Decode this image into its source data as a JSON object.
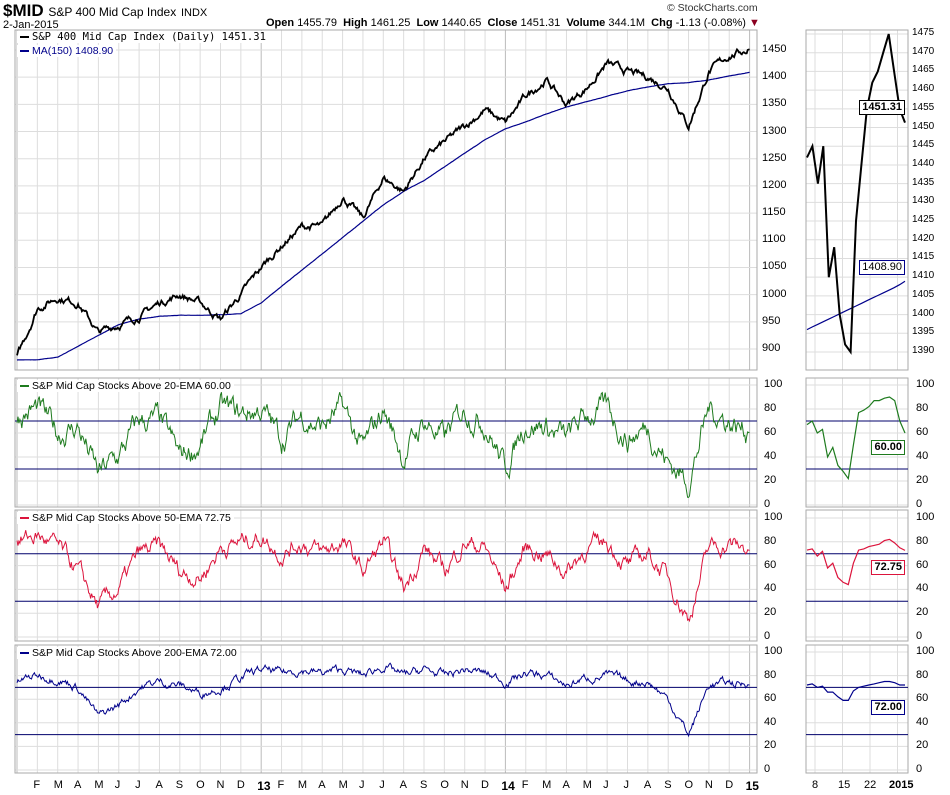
{
  "header": {
    "symbol": "$MID",
    "name": "S&P 400 Mid Cap Index",
    "exchange": "INDX",
    "date": "2-Jan-2015",
    "watermark": "© StockCharts.com",
    "open_label": "Open",
    "open": "1455.79",
    "high_label": "High",
    "high": "1461.25",
    "low_label": "Low",
    "low": "1440.65",
    "close_label": "Close",
    "close": "1451.31",
    "volume_label": "Volume",
    "volume": "344.1M",
    "chg_label": "Chg",
    "chg": "-1.13 (-0.08%)"
  },
  "colors": {
    "price": "#000000",
    "ma": "#00008b",
    "ema20": "#1e7b1e",
    "ema50": "#dc143c",
    "ema200": "#00008b",
    "grid": "#dddddd",
    "ref": "#00006b"
  },
  "chart_data": [
    {
      "type": "line",
      "title": "S&P 400 Mid Cap Index (Daily) 1451.31",
      "ylim": [
        880,
        1480
      ],
      "yticks": [
        900,
        950,
        1000,
        1050,
        1100,
        1150,
        1200,
        1250,
        1300,
        1350,
        1400,
        1450
      ],
      "series": [
        {
          "name": "S&P 400 Mid Cap Index (Daily) 1451.31",
          "monthly": [
            885,
            975,
            995,
            985,
            930,
            945,
            960,
            985,
            1000,
            985,
            955,
            1000,
            1050,
            1090,
            1125,
            1125,
            1180,
            1140,
            1215,
            1190,
            1250,
            1280,
            1310,
            1340,
            1315,
            1365,
            1395,
            1350,
            1380,
            1425,
            1410,
            1400,
            1380,
            1310,
            1410,
            1440,
            1451.31
          ]
        },
        {
          "name": "MA(150) 1408.90",
          "monthly": [
            880,
            880,
            885,
            905,
            925,
            945,
            955,
            960,
            962,
            962,
            963,
            965,
            985,
            1015,
            1045,
            1075,
            1105,
            1135,
            1165,
            1190,
            1210,
            1235,
            1260,
            1285,
            1305,
            1318,
            1332,
            1345,
            1355,
            1365,
            1375,
            1382,
            1388,
            1390,
            1395,
            1402,
            1408.9
          ]
        }
      ],
      "zoom": {
        "ylim": [
          1388,
          1477
        ],
        "yticks": [
          1390,
          1395,
          1400,
          1405,
          1410,
          1415,
          1420,
          1425,
          1430,
          1435,
          1440,
          1445,
          1450,
          1455,
          1460,
          1465,
          1470,
          1475
        ],
        "price": [
          1442,
          1445,
          1435,
          1445,
          1410,
          1418,
          1400,
          1392,
          1390,
          1425,
          1440,
          1455,
          1462,
          1465,
          1470,
          1475,
          1465,
          1455,
          1451.31
        ],
        "ma": [
          1396,
          1396.7,
          1397.4,
          1398.1,
          1398.8,
          1399.5,
          1400.2,
          1400.9,
          1401.6,
          1402.3,
          1403,
          1403.7,
          1404.4,
          1405.1,
          1405.8,
          1406.5,
          1407.2,
          1408,
          1408.9
        ],
        "last_price": "1451.31",
        "last_ma": "1408.90"
      }
    },
    {
      "type": "line",
      "title": "S&P Mid Cap Stocks Above 20-EMA 60.00",
      "ylim": [
        0,
        100
      ],
      "yticks": [
        0,
        20,
        40,
        60,
        80,
        100
      ],
      "ref_lines": [
        30,
        70
      ],
      "monthly": [
        75,
        80,
        60,
        65,
        25,
        40,
        70,
        70,
        40,
        50,
        80,
        75,
        80,
        55,
        75,
        65,
        80,
        45,
        80,
        40,
        70,
        55,
        80,
        70,
        30,
        70,
        65,
        55,
        75,
        80,
        55,
        65,
        35,
        20,
        80,
        70,
        60
      ],
      "zoom": [
        67,
        70,
        60,
        63,
        40,
        48,
        33,
        28,
        22,
        50,
        77,
        79,
        82,
        87,
        87,
        89,
        90,
        87,
        70,
        60
      ],
      "last": "60.00"
    },
    {
      "type": "line",
      "title": "S&P Mid Cap Stocks Above 50-EMA 72.75",
      "ylim": [
        0,
        100
      ],
      "yticks": [
        0,
        20,
        40,
        60,
        80,
        100
      ],
      "ref_lines": [
        30,
        70
      ],
      "monthly": [
        80,
        85,
        75,
        55,
        25,
        40,
        70,
        75,
        55,
        50,
        75,
        80,
        85,
        70,
        80,
        70,
        80,
        55,
        80,
        40,
        75,
        55,
        80,
        75,
        40,
        75,
        70,
        55,
        75,
        80,
        60,
        70,
        50,
        15,
        75,
        78,
        72.75
      ],
      "zoom": [
        73,
        74,
        68,
        72,
        58,
        62,
        50,
        46,
        44,
        62,
        73,
        74,
        76,
        77,
        78,
        81,
        82,
        79,
        75,
        72.75
      ],
      "last": "72.75"
    },
    {
      "type": "line",
      "title": "S&P Mid Cap Stocks Above 200-EMA 72.00",
      "ylim": [
        0,
        100
      ],
      "yticks": [
        0,
        20,
        40,
        60,
        80,
        100
      ],
      "ref_lines": [
        30,
        70
      ],
      "monthly": [
        75,
        80,
        78,
        70,
        45,
        55,
        70,
        75,
        72,
        65,
        70,
        78,
        85,
        82,
        85,
        82,
        85,
        80,
        88,
        80,
        85,
        80,
        85,
        82,
        75,
        82,
        80,
        72,
        78,
        80,
        75,
        75,
        60,
        30,
        72,
        74,
        72
      ],
      "zoom": [
        72,
        73,
        70,
        71,
        66,
        66,
        62,
        59,
        59,
        67,
        70,
        71,
        72,
        73,
        74,
        75,
        75,
        74,
        72,
        72
      ],
      "last": "72.00"
    }
  ],
  "xaxis": {
    "labels": [
      "F",
      "M",
      "A",
      "M",
      "J",
      "J",
      "A",
      "S",
      "O",
      "N",
      "D",
      "13",
      "F",
      "M",
      "A",
      "M",
      "J",
      "J",
      "A",
      "S",
      "O",
      "N",
      "D",
      "14",
      "F",
      "M",
      "A",
      "M",
      "J",
      "J",
      "A",
      "S",
      "O",
      "N",
      "D",
      "15"
    ],
    "zoom_labels": [
      "8",
      "15",
      "22",
      "2015"
    ]
  }
}
